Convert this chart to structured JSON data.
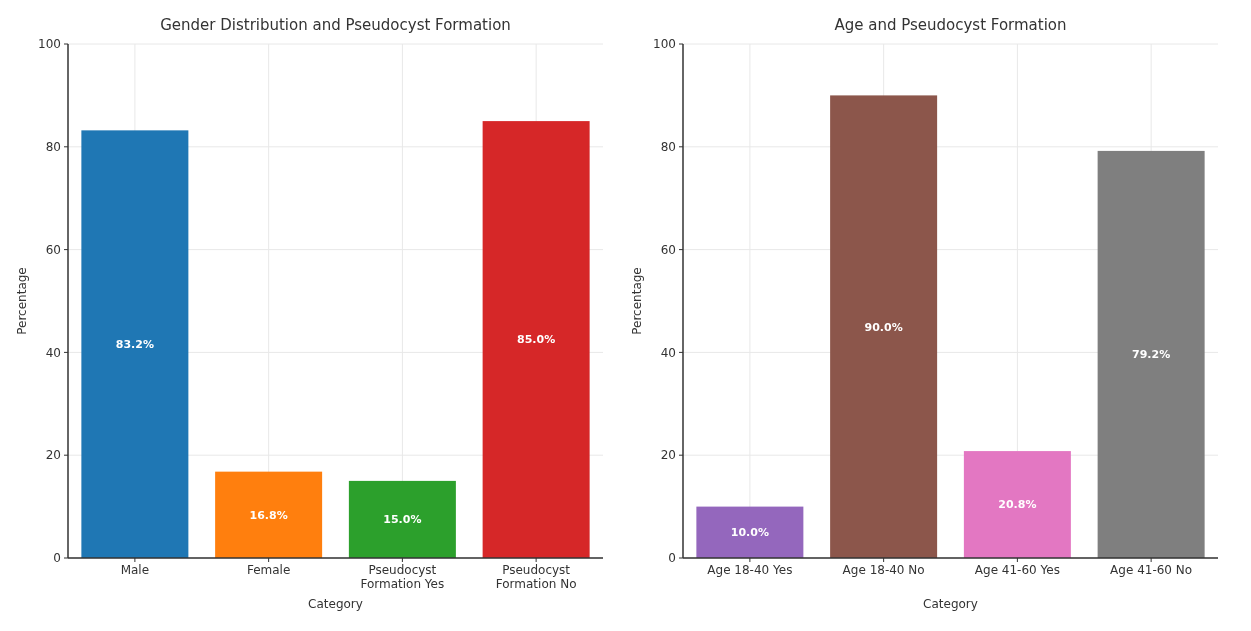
{
  "chart_data": [
    {
      "type": "bar",
      "title": "Gender Distribution and Pseudocyst Formation",
      "xlabel": "Category",
      "ylabel": "Percentage",
      "categories": [
        "Male",
        "Female",
        "Pseudocyst Formation Yes",
        "Pseudocyst Formation No"
      ],
      "values": [
        83.2,
        16.8,
        15.0,
        85.0
      ],
      "colors": [
        "#1f77b4",
        "#ff7f0e",
        "#2ca02c",
        "#d62728"
      ],
      "value_labels": [
        "83.2%",
        "16.8%",
        "15.0%",
        "85.0%"
      ],
      "ylim": [
        0,
        100
      ],
      "yticks": [
        0,
        20,
        40,
        60,
        80,
        100
      ],
      "grid": true
    },
    {
      "type": "bar",
      "title": "Age and Pseudocyst Formation",
      "xlabel": "Category",
      "ylabel": "Percentage",
      "categories": [
        "Age 18-40 Yes",
        "Age 18-40 No",
        "Age 41-60 Yes",
        "Age 41-60 No"
      ],
      "values": [
        10.0,
        90.0,
        20.8,
        79.2
      ],
      "colors": [
        "#9467bd",
        "#8c564b",
        "#e377c2",
        "#7f7f7f"
      ],
      "value_labels": [
        "10.0%",
        "90.0%",
        "20.8%",
        "79.2%"
      ],
      "ylim": [
        0,
        100
      ],
      "yticks": [
        0,
        20,
        40,
        60,
        80,
        100
      ],
      "grid": true
    }
  ]
}
